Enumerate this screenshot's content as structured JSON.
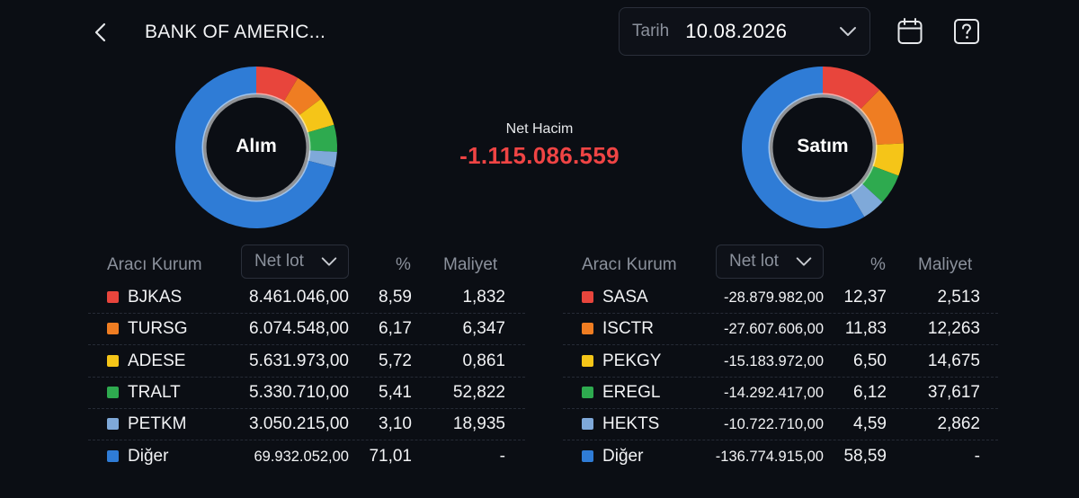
{
  "header": {
    "title": "BANK OF AMERIC...",
    "date_label": "Tarih",
    "date_value": "10.08.2026"
  },
  "net": {
    "label": "Net Hacim",
    "value": "-1.115.086.559"
  },
  "buy": {
    "center_label": "Alım",
    "columns": {
      "broker": "Aracı Kurum",
      "sort": "Net lot",
      "pct": "%",
      "cost": "Maliyet"
    },
    "rows": [
      {
        "name": "BJKAS",
        "lot": "8.461.046,00",
        "pct": "8,59",
        "cost": "1,832",
        "color": "#e8453c"
      },
      {
        "name": "TURSG",
        "lot": "6.074.548,00",
        "pct": "6,17",
        "cost": "6,347",
        "color": "#ef7d22"
      },
      {
        "name": "ADESE",
        "lot": "5.631.973,00",
        "pct": "5,72",
        "cost": "0,861",
        "color": "#f5c518"
      },
      {
        "name": "TRALT",
        "lot": "5.330.710,00",
        "pct": "5,41",
        "cost": "52,822",
        "color": "#2eaa4f"
      },
      {
        "name": "PETKM",
        "lot": "3.050.215,00",
        "pct": "3,10",
        "cost": "18,935",
        "color": "#7fa9d9"
      },
      {
        "name": "Diğer",
        "lot": "69.932.052,00",
        "pct": "71,01",
        "cost": "-",
        "color": "#2f7cd6"
      }
    ]
  },
  "sell": {
    "center_label": "Satım",
    "columns": {
      "broker": "Aracı Kurum",
      "sort": "Net lot",
      "pct": "%",
      "cost": "Maliyet"
    },
    "rows": [
      {
        "name": "SASA",
        "lot": "-28.879.982,00",
        "pct": "12,37",
        "cost": "2,513",
        "color": "#e8453c"
      },
      {
        "name": "ISCTR",
        "lot": "-27.607.606,00",
        "pct": "11,83",
        "cost": "12,263",
        "color": "#ef7d22"
      },
      {
        "name": "PEKGY",
        "lot": "-15.183.972,00",
        "pct": "6,50",
        "cost": "14,675",
        "color": "#f5c518"
      },
      {
        "name": "EREGL",
        "lot": "-14.292.417,00",
        "pct": "6,12",
        "cost": "37,617",
        "color": "#2eaa4f"
      },
      {
        "name": "HEKTS",
        "lot": "-10.722.710,00",
        "pct": "4,59",
        "cost": "2,862",
        "color": "#7fa9d9"
      },
      {
        "name": "Diğer",
        "lot": "-136.774.915,00",
        "pct": "58,59",
        "cost": "-",
        "color": "#2f7cd6"
      }
    ]
  },
  "icons": {
    "back": "chevron-left-icon",
    "dropdown": "chevron-down-icon",
    "calendar": "calendar-icon",
    "help": "help-icon"
  }
}
